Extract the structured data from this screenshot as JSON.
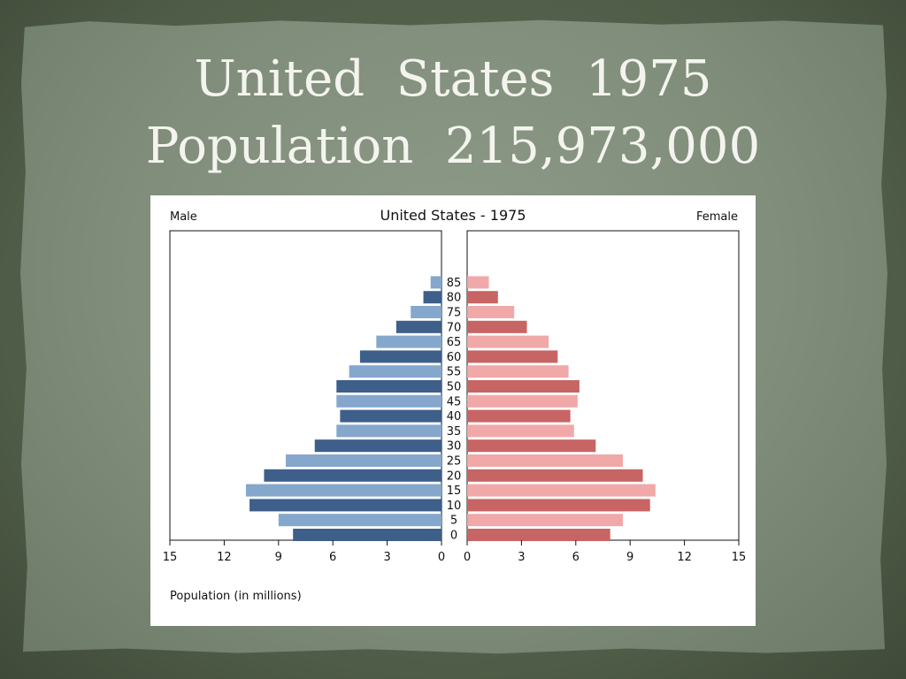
{
  "slide": {
    "title_line1": "United  States  1975",
    "title_line2": "Population  215,973,000"
  },
  "chart_data": {
    "type": "bar",
    "orientation": "horizontal-population-pyramid",
    "title": "United States - 1975",
    "left_label": "Male",
    "right_label": "Female",
    "xlabel": "Population (in millions)",
    "xlim": [
      0,
      15
    ],
    "x_ticks": [
      "15",
      "12",
      "9",
      "6",
      "3",
      "0"
    ],
    "x_ticks_right": [
      "0",
      "3",
      "6",
      "9",
      "12",
      "15"
    ],
    "categories": [
      "0",
      "5",
      "10",
      "15",
      "20",
      "25",
      "30",
      "35",
      "40",
      "45",
      "50",
      "55",
      "60",
      "65",
      "70",
      "75",
      "80",
      "85"
    ],
    "series": [
      {
        "name": "Male",
        "side": "left",
        "values": [
          8.2,
          9.0,
          10.6,
          10.8,
          9.8,
          8.6,
          7.0,
          5.8,
          5.6,
          5.8,
          5.8,
          5.1,
          4.5,
          3.6,
          2.5,
          1.7,
          1.0,
          0.6
        ],
        "colors": [
          "#3e5f8a",
          "#85a7cc"
        ]
      },
      {
        "name": "Female",
        "side": "right",
        "values": [
          7.9,
          8.6,
          10.1,
          10.4,
          9.7,
          8.6,
          7.1,
          5.9,
          5.7,
          6.1,
          6.2,
          5.6,
          5.0,
          4.5,
          3.3,
          2.6,
          1.7,
          1.2
        ],
        "colors": [
          "#c76564",
          "#f0a9a8"
        ]
      }
    ]
  }
}
